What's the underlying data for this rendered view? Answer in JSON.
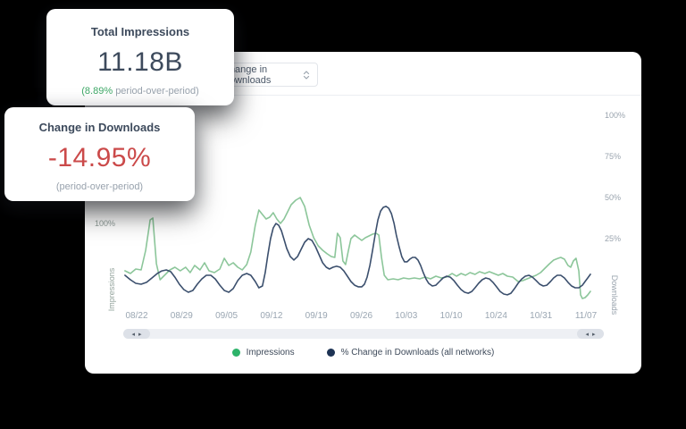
{
  "cards": {
    "impressions": {
      "title": "Total Impressions",
      "value": "11.18B",
      "delta_value": "(8.89%",
      "delta_label": "period-over-period)"
    },
    "downloads": {
      "title": "Change in Downloads",
      "value": "-14.95%",
      "subtitle": "(period-over-period)"
    }
  },
  "toolbar": {
    "metric_select_value": "Change in Downloads"
  },
  "scrollbar": {
    "prev": "◂",
    "next": "▸"
  },
  "colors": {
    "navy": "#3d4a5c",
    "red": "#cb4a4a",
    "green-text": "#3fa968",
    "gray": "#98a2ad",
    "line-green": "#8cc69a",
    "line-navy": "#3b4f6d"
  },
  "chart_data": {
    "type": "line",
    "x_categories": [
      "08/22",
      "08/29",
      "09/05",
      "09/12",
      "09/19",
      "09/26",
      "10/03",
      "10/10",
      "10/24",
      "10/31",
      "11/07"
    ],
    "left_axis": {
      "label": "Impressions",
      "ticks": [
        "100%"
      ],
      "unit": "%"
    },
    "right_axis": {
      "label": "Downloads",
      "ticks": [
        "100%",
        "75%",
        "50%",
        "25%"
      ],
      "unit": "%"
    },
    "legend_dot_colors": [
      "#2db36a",
      "#1d3354"
    ],
    "legend_position": "bottom-center",
    "grid": false,
    "series": [
      {
        "name": "Impressions",
        "axis": "left",
        "color": "#8cc69a",
        "points": [
          [
            -0.26,
            47
          ],
          [
            -0.14,
            44
          ],
          [
            -0.02,
            49
          ],
          [
            0.1,
            48
          ],
          [
            0.2,
            70
          ],
          [
            0.3,
            104
          ],
          [
            0.36,
            106
          ],
          [
            0.44,
            55
          ],
          [
            0.52,
            37
          ],
          [
            0.62,
            42
          ],
          [
            0.74,
            48
          ],
          [
            0.85,
            51
          ],
          [
            0.97,
            47
          ],
          [
            1.09,
            51
          ],
          [
            1.19,
            45
          ],
          [
            1.29,
            53
          ],
          [
            1.41,
            48
          ],
          [
            1.51,
            56
          ],
          [
            1.61,
            47
          ],
          [
            1.73,
            45
          ],
          [
            1.85,
            49
          ],
          [
            1.95,
            61
          ],
          [
            2.05,
            53
          ],
          [
            2.15,
            56
          ],
          [
            2.25,
            51
          ],
          [
            2.35,
            48
          ],
          [
            2.45,
            54
          ],
          [
            2.54,
            68
          ],
          [
            2.64,
            98
          ],
          [
            2.72,
            115
          ],
          [
            2.8,
            110
          ],
          [
            2.88,
            105
          ],
          [
            2.96,
            107
          ],
          [
            3.04,
            112
          ],
          [
            3.12,
            105
          ],
          [
            3.2,
            100
          ],
          [
            3.28,
            105
          ],
          [
            3.36,
            113
          ],
          [
            3.44,
            121
          ],
          [
            3.54,
            126
          ],
          [
            3.64,
            129
          ],
          [
            3.74,
            119
          ],
          [
            3.84,
            98
          ],
          [
            3.94,
            84
          ],
          [
            4.04,
            75
          ],
          [
            4.14,
            70
          ],
          [
            4.24,
            66
          ],
          [
            4.33,
            63
          ],
          [
            4.41,
            62
          ],
          [
            4.47,
            89
          ],
          [
            4.53,
            84
          ],
          [
            4.59,
            58
          ],
          [
            4.65,
            54
          ],
          [
            4.71,
            69
          ],
          [
            4.77,
            83
          ],
          [
            4.85,
            87
          ],
          [
            4.93,
            84
          ],
          [
            5.01,
            81
          ],
          [
            5.09,
            84
          ],
          [
            5.17,
            86
          ],
          [
            5.25,
            88
          ],
          [
            5.33,
            89
          ],
          [
            5.39,
            87
          ],
          [
            5.45,
            62
          ],
          [
            5.51,
            42
          ],
          [
            5.59,
            37
          ],
          [
            5.71,
            38
          ],
          [
            5.82,
            37
          ],
          [
            5.94,
            39
          ],
          [
            6.06,
            38
          ],
          [
            6.18,
            39
          ],
          [
            6.3,
            38
          ],
          [
            6.42,
            40
          ],
          [
            6.54,
            38
          ],
          [
            6.66,
            41
          ],
          [
            6.78,
            39
          ],
          [
            6.9,
            40
          ],
          [
            7.02,
            44
          ],
          [
            7.12,
            41
          ],
          [
            7.22,
            44
          ],
          [
            7.32,
            42
          ],
          [
            7.42,
            45
          ],
          [
            7.53,
            43
          ],
          [
            7.63,
            46
          ],
          [
            7.75,
            44
          ],
          [
            7.85,
            46
          ],
          [
            7.95,
            44
          ],
          [
            8.05,
            42
          ],
          [
            8.15,
            44
          ],
          [
            8.25,
            41
          ],
          [
            8.37,
            40
          ],
          [
            8.49,
            35
          ],
          [
            8.59,
            36
          ],
          [
            8.69,
            38
          ],
          [
            8.79,
            40
          ],
          [
            8.89,
            42
          ],
          [
            8.99,
            45
          ],
          [
            9.09,
            50
          ],
          [
            9.19,
            55
          ],
          [
            9.28,
            59
          ],
          [
            9.38,
            61
          ],
          [
            9.44,
            62
          ],
          [
            9.52,
            60
          ],
          [
            9.6,
            53
          ],
          [
            9.66,
            51
          ],
          [
            9.72,
            58
          ],
          [
            9.78,
            61
          ],
          [
            9.84,
            47
          ],
          [
            9.88,
            20
          ],
          [
            9.92,
            16
          ],
          [
            9.98,
            17
          ],
          [
            10.04,
            20
          ],
          [
            10.1,
            24
          ]
        ]
      },
      {
        "name": "% Change in Downloads (all networks)",
        "axis": "right",
        "color": "#3b4f6d",
        "points": [
          [
            -0.26,
            2.7
          ],
          [
            -0.14,
            0
          ],
          [
            -0.02,
            -2.2
          ],
          [
            0.1,
            -2.7
          ],
          [
            0.22,
            -1.6
          ],
          [
            0.34,
            1.1
          ],
          [
            0.46,
            3.8
          ],
          [
            0.56,
            5.4
          ],
          [
            0.66,
            6.0
          ],
          [
            0.76,
            4.9
          ],
          [
            0.85,
            1.6
          ],
          [
            0.95,
            -2.7
          ],
          [
            1.05,
            -6.0
          ],
          [
            1.15,
            -7.6
          ],
          [
            1.25,
            -6.5
          ],
          [
            1.35,
            -2.7
          ],
          [
            1.45,
            0.5
          ],
          [
            1.55,
            2.7
          ],
          [
            1.65,
            2.7
          ],
          [
            1.75,
            0.5
          ],
          [
            1.85,
            -3.3
          ],
          [
            1.95,
            -6.5
          ],
          [
            2.05,
            -7.6
          ],
          [
            2.15,
            -5.4
          ],
          [
            2.25,
            -0.5
          ],
          [
            2.35,
            2.7
          ],
          [
            2.45,
            3.8
          ],
          [
            2.54,
            2.7
          ],
          [
            2.64,
            -1.1
          ],
          [
            2.72,
            -4.9
          ],
          [
            2.8,
            -3.8
          ],
          [
            2.86,
            4.3
          ],
          [
            2.92,
            15.2
          ],
          [
            2.98,
            25.0
          ],
          [
            3.04,
            31.5
          ],
          [
            3.1,
            34.2
          ],
          [
            3.16,
            33.2
          ],
          [
            3.22,
            29.9
          ],
          [
            3.28,
            24.5
          ],
          [
            3.34,
            19.0
          ],
          [
            3.42,
            14.1
          ],
          [
            3.5,
            12.0
          ],
          [
            3.58,
            14.1
          ],
          [
            3.66,
            18.5
          ],
          [
            3.74,
            22.8
          ],
          [
            3.82,
            25.0
          ],
          [
            3.9,
            23.9
          ],
          [
            3.98,
            20.1
          ],
          [
            4.06,
            15.2
          ],
          [
            4.14,
            10.3
          ],
          [
            4.22,
            7.6
          ],
          [
            4.29,
            6.5
          ],
          [
            4.37,
            7.6
          ],
          [
            4.45,
            8.2
          ],
          [
            4.53,
            7.6
          ],
          [
            4.61,
            5.4
          ],
          [
            4.69,
            2.2
          ],
          [
            4.77,
            -1.1
          ],
          [
            4.85,
            -3.3
          ],
          [
            4.93,
            -4.3
          ],
          [
            5.01,
            -4.3
          ],
          [
            5.07,
            -2.7
          ],
          [
            5.13,
            1.6
          ],
          [
            5.19,
            8.7
          ],
          [
            5.25,
            17.9
          ],
          [
            5.31,
            27.7
          ],
          [
            5.37,
            36.4
          ],
          [
            5.43,
            41.8
          ],
          [
            5.49,
            44.0
          ],
          [
            5.55,
            44.6
          ],
          [
            5.61,
            43.5
          ],
          [
            5.67,
            40.2
          ],
          [
            5.73,
            34.2
          ],
          [
            5.78,
            27.2
          ],
          [
            5.84,
            20.1
          ],
          [
            5.9,
            14.1
          ],
          [
            5.96,
            10.9
          ],
          [
            6.02,
            10.9
          ],
          [
            6.08,
            12.5
          ],
          [
            6.14,
            13.6
          ],
          [
            6.2,
            13.6
          ],
          [
            6.26,
            12.0
          ],
          [
            6.32,
            8.7
          ],
          [
            6.38,
            4.3
          ],
          [
            6.44,
            0.5
          ],
          [
            6.5,
            -2.2
          ],
          [
            6.58,
            -3.8
          ],
          [
            6.66,
            -3.3
          ],
          [
            6.74,
            -1.1
          ],
          [
            6.82,
            1.1
          ],
          [
            6.9,
            2.2
          ],
          [
            6.98,
            1.6
          ],
          [
            7.06,
            -0.5
          ],
          [
            7.14,
            -3.3
          ],
          [
            7.22,
            -6.0
          ],
          [
            7.3,
            -7.6
          ],
          [
            7.38,
            -8.2
          ],
          [
            7.46,
            -7.1
          ],
          [
            7.53,
            -4.9
          ],
          [
            7.61,
            -2.2
          ],
          [
            7.69,
            0
          ],
          [
            7.77,
            1.1
          ],
          [
            7.85,
            0.5
          ],
          [
            7.93,
            -1.6
          ],
          [
            8.01,
            -4.3
          ],
          [
            8.09,
            -7.1
          ],
          [
            8.17,
            -8.7
          ],
          [
            8.25,
            -9.2
          ],
          [
            8.33,
            -8.2
          ],
          [
            8.41,
            -5.4
          ],
          [
            8.49,
            -2.2
          ],
          [
            8.57,
            0.5
          ],
          [
            8.65,
            2.2
          ],
          [
            8.73,
            2.7
          ],
          [
            8.81,
            1.6
          ],
          [
            8.89,
            -0.5
          ],
          [
            8.97,
            -2.7
          ],
          [
            9.05,
            -3.8
          ],
          [
            9.13,
            -3.3
          ],
          [
            9.21,
            -1.1
          ],
          [
            9.28,
            1.1
          ],
          [
            9.36,
            2.7
          ],
          [
            9.44,
            2.7
          ],
          [
            9.52,
            1.1
          ],
          [
            9.6,
            -1.6
          ],
          [
            9.68,
            -3.8
          ],
          [
            9.76,
            -4.9
          ],
          [
            9.84,
            -4.9
          ],
          [
            9.92,
            -3.3
          ],
          [
            9.98,
            -1.1
          ],
          [
            10.04,
            1.1
          ],
          [
            10.1,
            3.3
          ]
        ]
      }
    ]
  }
}
